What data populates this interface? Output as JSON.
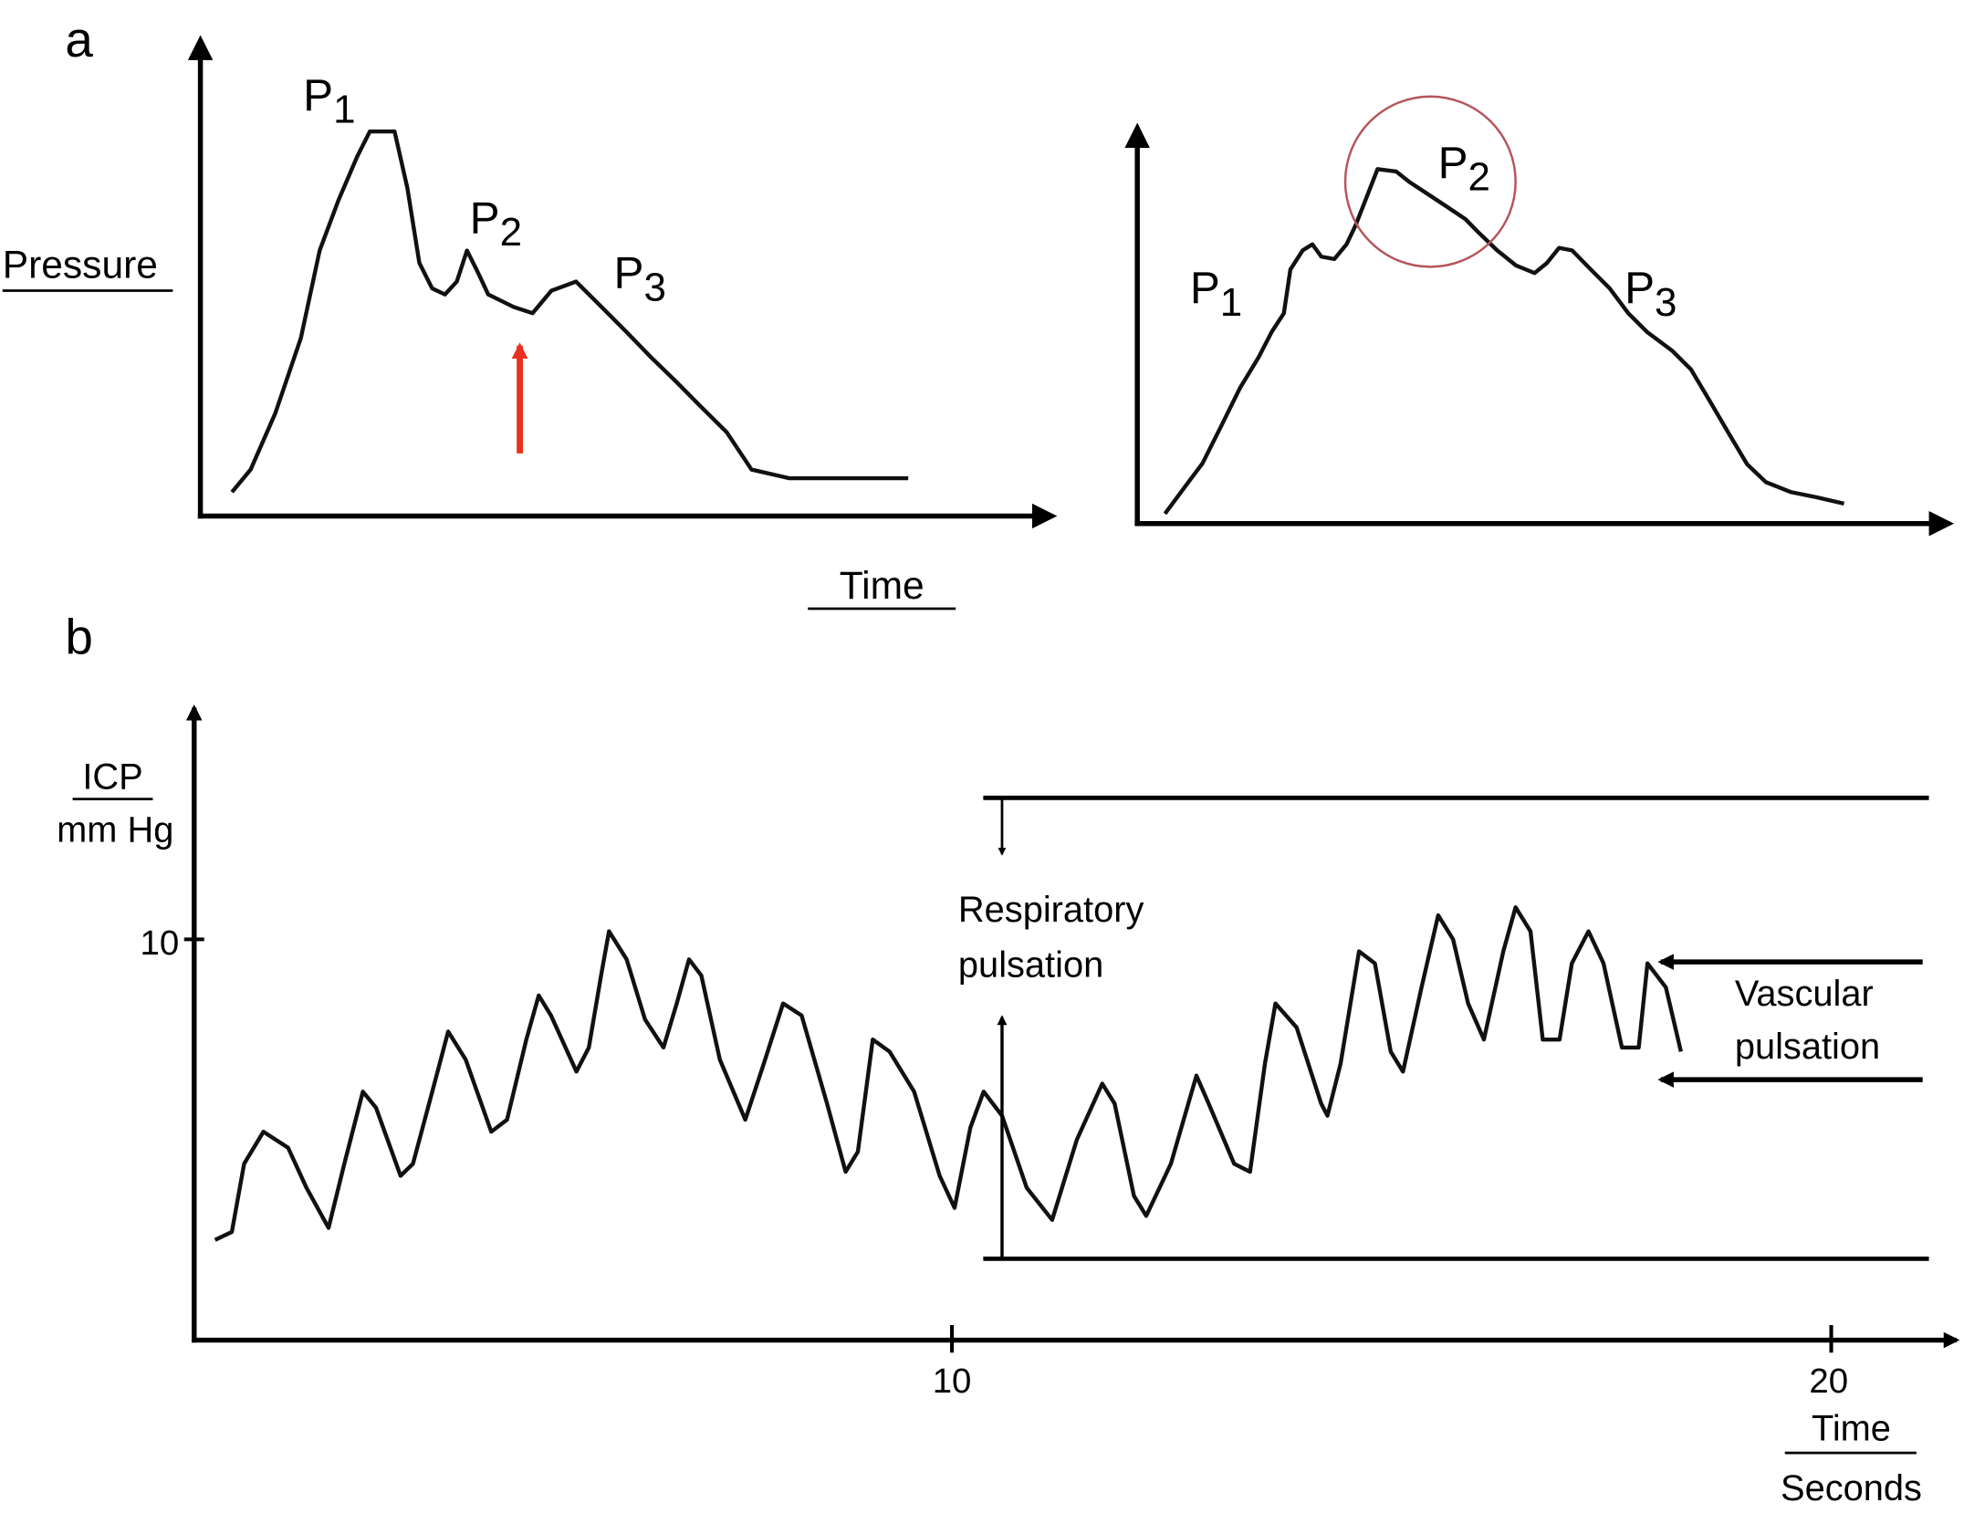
{
  "panel_labels": {
    "a": "a",
    "b": "b"
  },
  "colors": {
    "trace": "#111111",
    "arrow_red": "#e8321e",
    "circle": "#b5555a"
  },
  "chart_data": [
    {
      "type": "line",
      "panel": "a-left",
      "ylabel": "Pressure",
      "xlabel": "Time",
      "annotations": {
        "p1": {
          "base": "P",
          "sub": "1"
        },
        "p2": {
          "base": "P",
          "sub": "2"
        },
        "p3": {
          "base": "P",
          "sub": "3"
        }
      },
      "marker": "red upward arrow under the notch between P2 and P3",
      "x": [
        3.7,
        5.9,
        8.8,
        11.8,
        14.0,
        16.2,
        18.4,
        19.9,
        22.8,
        24.3,
        25.7,
        27.2,
        28.7,
        30.1,
        31.3,
        32.4,
        33.8,
        36.8,
        39.0,
        41.2,
        44.1,
        47.1,
        50.0,
        52.9,
        55.9,
        58.8,
        61.8,
        64.7,
        69.1,
        83.1
      ],
      "y": [
        5.0,
        9.7,
        21.5,
        37.2,
        55.5,
        66.0,
        75.1,
        80.4,
        80.4,
        68.6,
        52.9,
        47.6,
        46.3,
        49.0,
        55.5,
        51.6,
        46.3,
        43.7,
        42.4,
        47.1,
        49.0,
        43.7,
        38.5,
        33.2,
        28.0,
        22.8,
        17.5,
        9.7,
        7.9,
        7.9
      ]
    },
    {
      "type": "line",
      "panel": "a-right",
      "annotations": {
        "p1": {
          "base": "P",
          "sub": "1"
        },
        "p2": {
          "base": "P",
          "sub": "2"
        },
        "p3": {
          "base": "P",
          "sub": "3"
        }
      },
      "marker": "circle around P2",
      "x": [
        3.4,
        5.7,
        8.0,
        10.3,
        12.6,
        14.9,
        16.5,
        18.0,
        18.8,
        20.3,
        21.5,
        22.6,
        24.2,
        25.7,
        26.8,
        28.3,
        29.5,
        31.8,
        33.4,
        35.7,
        38.0,
        40.3,
        41.8,
        44.2,
        46.5,
        48.8,
        50.3,
        51.8,
        53.4,
        55.7,
        58.0,
        60.3,
        62.6,
        65.7,
        68.0,
        70.3,
        72.6,
        74.9,
        77.2,
        80.3,
        83.4,
        86.8
      ],
      "y": [
        2.5,
        8.8,
        15.1,
        24.5,
        34.0,
        41.8,
        48.1,
        52.8,
        63.8,
        68.6,
        70.1,
        67.0,
        66.4,
        70.1,
        74.8,
        82.7,
        89.0,
        88.4,
        85.8,
        82.7,
        79.6,
        76.4,
        73.3,
        68.6,
        64.8,
        62.9,
        65.4,
        69.2,
        68.6,
        63.8,
        59.1,
        52.8,
        48.1,
        43.4,
        38.7,
        30.8,
        22.8,
        14.9,
        10.4,
        7.9,
        6.6,
        5.0
      ]
    },
    {
      "type": "line",
      "panel": "b",
      "ylabel": {
        "line1": "ICP",
        "line2": "mm Hg"
      },
      "xlabel": {
        "line1": "Time",
        "line2": "Seconds"
      },
      "x_ticks": [
        "10",
        "20"
      ],
      "y_ticks": [
        "10"
      ],
      "annotations": {
        "respiratory": {
          "line1": "Respiratory",
          "line2": "pulsation"
        },
        "vascular": {
          "line1": "Vascular",
          "line2": "pulsation"
        }
      },
      "x": [
        1.62,
        1.81,
        1.95,
        2.17,
        2.45,
        2.66,
        2.91,
        3.09,
        3.3,
        3.45,
        3.73,
        3.87,
        4.09,
        4.27,
        4.47,
        4.76,
        4.94,
        5.16,
        5.3,
        5.44,
        5.73,
        5.87,
        6.01,
        6.1,
        6.3,
        6.51,
        6.72,
        6.87,
        7.01,
        7.15,
        7.36,
        7.65,
        7.86,
        8.08,
        8.29,
        8.58,
        8.79,
        8.93,
        9.1,
        9.29,
        9.57,
        9.86,
        10.03,
        10.21,
        10.36,
        10.57,
        10.85,
        11.14,
        11.42,
        11.71,
        11.85,
        12.07,
        12.21,
        12.49,
        12.78,
        12.92,
        13.21,
        13.39,
        13.56,
        13.68,
        13.92,
        14.2,
        14.27,
        14.42,
        14.63,
        14.81,
        14.99,
        15.13,
        15.34,
        15.53,
        15.7,
        15.87,
        16.05,
        16.27,
        16.41,
        16.58,
        16.72,
        16.91,
        17.05,
        17.24,
        17.41,
        17.62,
        17.81,
        17.91,
        18.12,
        18.29
      ],
      "y": [
        2.5,
        2.7,
        4.4,
        5.2,
        4.8,
        3.8,
        2.8,
        4.4,
        6.2,
        5.8,
        4.1,
        4.4,
        6.2,
        7.7,
        7.0,
        5.2,
        5.5,
        7.5,
        8.6,
        8.1,
        6.7,
        7.3,
        9.1,
        10.2,
        9.5,
        8.0,
        7.3,
        8.4,
        9.5,
        9.1,
        7.0,
        5.5,
        6.9,
        8.4,
        8.1,
        5.9,
        4.2,
        4.7,
        7.5,
        7.2,
        6.2,
        4.1,
        3.3,
        5.3,
        6.2,
        5.6,
        3.8,
        3.0,
        5.0,
        6.4,
        5.9,
        3.6,
        3.1,
        4.4,
        6.6,
        5.9,
        4.4,
        4.2,
        6.9,
        8.4,
        7.8,
        5.9,
        5.6,
        6.9,
        9.7,
        9.4,
        7.2,
        6.7,
        8.8,
        10.6,
        10.0,
        8.4,
        7.5,
        9.7,
        10.8,
        10.2,
        7.5,
        7.5,
        9.4,
        10.2,
        9.4,
        7.3,
        7.3,
        9.4,
        8.8,
        7.2
      ]
    }
  ]
}
